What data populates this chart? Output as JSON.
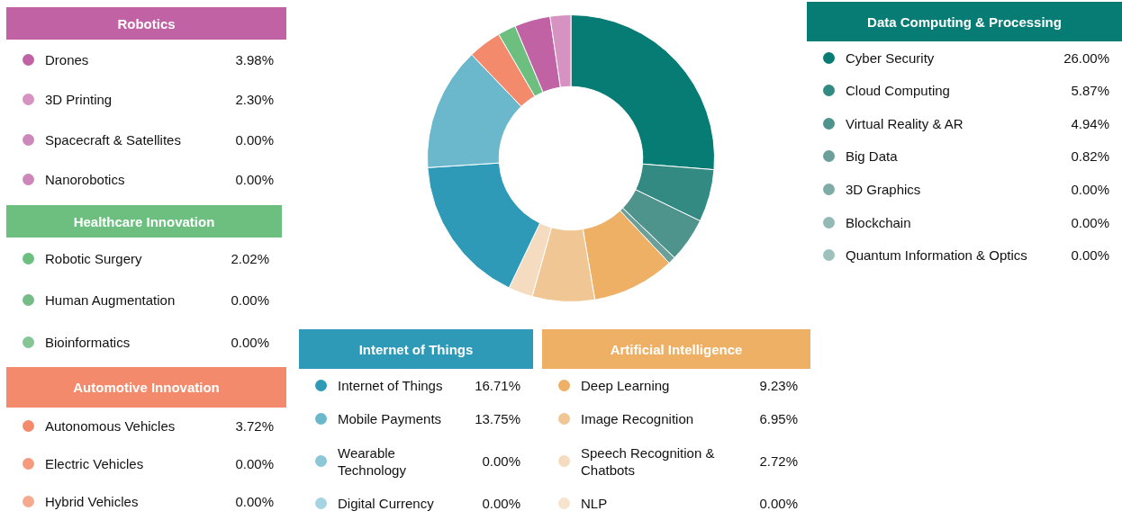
{
  "chart_data": {
    "type": "donut",
    "categories": [
      "Cyber Security",
      "Cloud Computing",
      "Virtual Reality & AR",
      "Big Data",
      "3D Graphics",
      "Blockchain",
      "Quantum Information & Optics",
      "Deep Learning",
      "Image Recognition",
      "Speech Recognition & Chatbots",
      "NLP",
      "Internet of Things",
      "Mobile Payments",
      "Wearable Technology",
      "Digital Currency",
      "Autonomous Vehicles",
      "Electric Vehicles",
      "Hybrid Vehicles",
      "Robotic Surgery",
      "Human Augmentation",
      "Bioinformatics",
      "Drones",
      "3D Printing",
      "Spacecraft & Satellites",
      "Nanorobotics"
    ],
    "values": [
      26.0,
      5.87,
      4.94,
      0.82,
      0.0,
      0.0,
      0.0,
      9.23,
      6.95,
      2.72,
      0.0,
      16.71,
      13.75,
      0.0,
      0.0,
      3.72,
      0.0,
      0.0,
      2.02,
      0.0,
      0.0,
      3.98,
      2.3,
      0.0,
      0.0
    ],
    "value_labels": [
      "26.00%",
      "5.87%",
      "4.94%",
      "0.82%",
      "0.00%",
      "0.00%",
      "0.00%",
      "9.23%",
      "6.95%",
      "2.72%",
      "0.00%",
      "16.71%",
      "13.75%",
      "0.00%",
      "0.00%",
      "3.72%",
      "0.00%",
      "0.00%",
      "2.02%",
      "0.00%",
      "0.00%",
      "3.98%",
      "2.30%",
      "0.00%",
      "0.00%"
    ],
    "colors": [
      "#077c74",
      "#338a82",
      "#4f938d",
      "#6a9f9a",
      "#80aca8",
      "#92b9b5",
      "#9ec1be",
      "#edb064",
      "#f0c794",
      "#f5dcc0",
      "#f7e4cf",
      "#2e9ab8",
      "#6bb8cc",
      "#8cc7d7",
      "#a6d4e0",
      "#f28a6b",
      "#f59a7d",
      "#f7a98f",
      "#6cbf7f",
      "#74bd88",
      "#85c596",
      "#c062a3",
      "#d692c0",
      "#cc88bb",
      "#cc88bb"
    ],
    "legend": "left",
    "annotations": [
      "Data Computing & Processing",
      "Artificial Intelligence",
      "Internet of Things",
      "Automotive Innovation",
      "Healthcare Innovation",
      "Robotics"
    ]
  }
}
